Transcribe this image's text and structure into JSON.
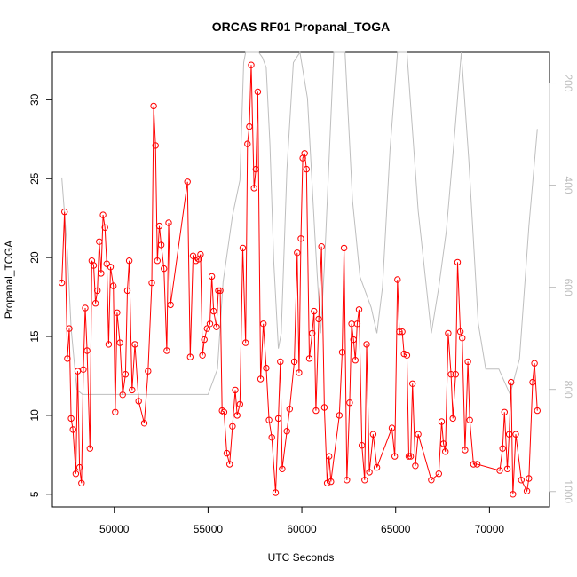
{
  "chart_data": {
    "type": "line",
    "title": "ORCAS RF01 Propanal_TOGA",
    "xlabel": "UTC Seconds",
    "ylabel": "Propanal_TOGA",
    "xlim": [
      46700,
      73200
    ],
    "ylim": [
      4.2,
      33.0
    ],
    "y2lim": [
      1030,
      140
    ],
    "y2_reversed": true,
    "x_ticks": [
      50000,
      55000,
      60000,
      65000,
      70000
    ],
    "x_tick_labels": [
      "50000",
      "55000",
      "60000",
      "65000",
      "70000"
    ],
    "y_ticks": [
      5,
      10,
      15,
      20,
      25,
      30
    ],
    "y_tick_labels": [
      "5",
      "10",
      "15",
      "20",
      "25",
      "30"
    ],
    "y2_ticks": [
      200,
      400,
      600,
      800,
      1000
    ],
    "y2_tick_labels": [
      "200",
      "400",
      "600",
      "800",
      "1000"
    ],
    "colors": {
      "series": "#ff0000",
      "secondary": "#bebebe",
      "axis": "#000000",
      "right_axis": "#bdbdbd"
    },
    "series": [
      {
        "values": [
          [
            47200,
            18.4
          ],
          [
            47350,
            22.9
          ],
          [
            47500,
            13.6
          ],
          [
            47600,
            15.5
          ],
          [
            47700,
            9.8
          ],
          [
            47800,
            9.1
          ],
          [
            47950,
            6.3
          ],
          [
            48050,
            12.8
          ],
          [
            48150,
            6.7
          ],
          [
            48250,
            5.7
          ],
          [
            48350,
            12.9
          ],
          [
            48450,
            16.8
          ],
          [
            48550,
            14.1
          ],
          [
            48700,
            7.9
          ],
          [
            48800,
            19.8
          ],
          [
            48900,
            19.5
          ],
          [
            49000,
            17.1
          ],
          [
            49100,
            17.9
          ],
          [
            49200,
            21.0
          ],
          [
            49300,
            19.0
          ],
          [
            49400,
            22.7
          ],
          [
            49500,
            21.9
          ],
          [
            49600,
            19.6
          ],
          [
            49700,
            14.5
          ],
          [
            49800,
            19.4
          ],
          [
            49950,
            18.2
          ],
          [
            50050,
            10.2
          ],
          [
            50150,
            16.5
          ],
          [
            50300,
            14.6
          ],
          [
            50450,
            11.3
          ],
          [
            50600,
            12.6
          ],
          [
            50700,
            17.9
          ],
          [
            50800,
            19.8
          ],
          [
            50950,
            11.6
          ],
          [
            51100,
            14.5
          ],
          [
            51300,
            10.9
          ],
          [
            51600,
            9.5
          ],
          [
            51800,
            12.8
          ],
          [
            52000,
            18.4
          ],
          [
            52100,
            29.6
          ],
          [
            52200,
            27.1
          ],
          [
            52300,
            19.8
          ],
          [
            52400,
            22.0
          ],
          [
            52500,
            20.8
          ],
          [
            52650,
            19.3
          ],
          [
            52800,
            14.1
          ],
          [
            52900,
            22.2
          ],
          [
            53000,
            17.0
          ],
          [
            53900,
            24.8
          ],
          [
            54050,
            13.7
          ],
          [
            54200,
            20.1
          ],
          [
            54350,
            19.8
          ],
          [
            54500,
            19.9
          ],
          [
            54600,
            20.2
          ],
          [
            54700,
            13.8
          ],
          [
            54800,
            14.8
          ],
          [
            54950,
            15.5
          ],
          [
            55100,
            15.8
          ],
          [
            55200,
            18.8
          ],
          [
            55300,
            16.6
          ],
          [
            55450,
            15.6
          ],
          [
            55550,
            17.9
          ],
          [
            55650,
            17.9
          ],
          [
            55750,
            10.3
          ],
          [
            55850,
            10.2
          ],
          [
            56000,
            7.6
          ],
          [
            56150,
            6.9
          ],
          [
            56300,
            9.3
          ],
          [
            56450,
            11.6
          ],
          [
            56550,
            10.0
          ],
          [
            56700,
            10.7
          ],
          [
            56850,
            20.6
          ],
          [
            57000,
            14.6
          ],
          [
            57100,
            27.2
          ],
          [
            57200,
            28.3
          ],
          [
            57300,
            32.2
          ],
          [
            57450,
            24.4
          ],
          [
            57550,
            25.6
          ],
          [
            57650,
            30.5
          ],
          [
            57800,
            12.3
          ],
          [
            57950,
            15.8
          ],
          [
            58100,
            13.0
          ],
          [
            58250,
            9.7
          ],
          [
            58400,
            8.6
          ],
          [
            58600,
            5.1
          ],
          [
            58750,
            9.8
          ],
          [
            58850,
            13.4
          ],
          [
            58950,
            6.6
          ],
          [
            59200,
            9.0
          ],
          [
            59350,
            10.4
          ],
          [
            59600,
            13.4
          ],
          [
            59750,
            20.3
          ],
          [
            59850,
            12.7
          ],
          [
            59950,
            21.2
          ],
          [
            60050,
            26.3
          ],
          [
            60150,
            26.6
          ],
          [
            60250,
            25.6
          ],
          [
            60400,
            13.6
          ],
          [
            60550,
            15.2
          ],
          [
            60650,
            16.6
          ],
          [
            60750,
            10.3
          ],
          [
            60900,
            16.1
          ],
          [
            61050,
            20.7
          ],
          [
            61200,
            10.5
          ],
          [
            61350,
            5.7
          ],
          [
            61450,
            7.4
          ],
          [
            61550,
            5.8
          ],
          [
            62000,
            10.0
          ],
          [
            62150,
            14.0
          ],
          [
            62250,
            20.6
          ],
          [
            62400,
            5.9
          ],
          [
            62550,
            10.8
          ],
          [
            62650,
            15.8
          ],
          [
            62750,
            14.8
          ],
          [
            62850,
            13.5
          ],
          [
            62950,
            15.8
          ],
          [
            63050,
            16.7
          ],
          [
            63200,
            8.1
          ],
          [
            63350,
            5.9
          ],
          [
            63450,
            14.5
          ],
          [
            63600,
            6.4
          ],
          [
            63800,
            8.8
          ],
          [
            64000,
            6.7
          ],
          [
            64800,
            9.2
          ],
          [
            64950,
            7.4
          ],
          [
            65100,
            18.6
          ],
          [
            65200,
            15.3
          ],
          [
            65350,
            15.3
          ],
          [
            65450,
            13.9
          ],
          [
            65600,
            13.8
          ],
          [
            65700,
            7.4
          ],
          [
            65800,
            7.4
          ],
          [
            65900,
            12.0
          ],
          [
            66050,
            6.8
          ],
          [
            66200,
            8.8
          ],
          [
            66900,
            5.9
          ],
          [
            67300,
            6.3
          ],
          [
            67450,
            9.6
          ],
          [
            67550,
            8.2
          ],
          [
            67650,
            7.7
          ],
          [
            67800,
            15.2
          ],
          [
            67950,
            12.6
          ],
          [
            68050,
            9.8
          ],
          [
            68200,
            12.6
          ],
          [
            68300,
            19.7
          ],
          [
            68450,
            15.3
          ],
          [
            68550,
            14.9
          ],
          [
            68700,
            7.8
          ],
          [
            68850,
            13.4
          ],
          [
            68950,
            9.7
          ],
          [
            69150,
            6.9
          ],
          [
            69350,
            6.9
          ],
          [
            70550,
            6.5
          ],
          [
            70700,
            7.9
          ],
          [
            70800,
            10.2
          ],
          [
            70950,
            6.6
          ],
          [
            71050,
            8.8
          ],
          [
            71150,
            12.1
          ],
          [
            71250,
            5.0
          ],
          [
            71400,
            8.8
          ],
          [
            71700,
            5.9
          ],
          [
            72000,
            5.2
          ],
          [
            72100,
            6.0
          ],
          [
            72300,
            12.1
          ],
          [
            72400,
            13.3
          ],
          [
            72550,
            10.3
          ]
        ]
      },
      {
        "axis": "right",
        "values": [
          [
            47200,
            385
          ],
          [
            47500,
            530
          ],
          [
            47700,
            680
          ],
          [
            48000,
            800
          ],
          [
            48300,
            810
          ],
          [
            49000,
            810
          ],
          [
            50000,
            810
          ],
          [
            51500,
            810
          ],
          [
            52000,
            810
          ],
          [
            53000,
            810
          ],
          [
            54000,
            810
          ],
          [
            54500,
            810
          ],
          [
            55000,
            810
          ],
          [
            55500,
            760
          ],
          [
            55800,
            590
          ],
          [
            56300,
            460
          ],
          [
            56700,
            390
          ],
          [
            56900,
            160
          ],
          [
            57000,
            120
          ],
          [
            57300,
            120
          ],
          [
            57500,
            130
          ],
          [
            57700,
            140
          ],
          [
            57900,
            150
          ],
          [
            58100,
            170
          ],
          [
            58300,
            320
          ],
          [
            58500,
            550
          ],
          [
            58750,
            720
          ],
          [
            58900,
            690
          ],
          [
            59200,
            370
          ],
          [
            59550,
            160
          ],
          [
            59900,
            140
          ],
          [
            60300,
            230
          ],
          [
            60700,
            500
          ],
          [
            61000,
            690
          ],
          [
            61200,
            560
          ],
          [
            61700,
            120
          ],
          [
            62000,
            120
          ],
          [
            62300,
            120
          ],
          [
            62700,
            430
          ],
          [
            63100,
            580
          ],
          [
            63700,
            640
          ],
          [
            64000,
            690
          ],
          [
            64300,
            600
          ],
          [
            64700,
            330
          ],
          [
            65100,
            140
          ],
          [
            65600,
            140
          ],
          [
            66200,
            450
          ],
          [
            66900,
            690
          ],
          [
            67300,
            600
          ],
          [
            67700,
            490
          ],
          [
            68100,
            320
          ],
          [
            68500,
            140
          ],
          [
            68900,
            350
          ],
          [
            69400,
            670
          ],
          [
            69800,
            760
          ],
          [
            70500,
            760
          ],
          [
            71100,
            810
          ],
          [
            71600,
            740
          ],
          [
            72100,
            480
          ],
          [
            72550,
            290
          ]
        ]
      }
    ]
  }
}
